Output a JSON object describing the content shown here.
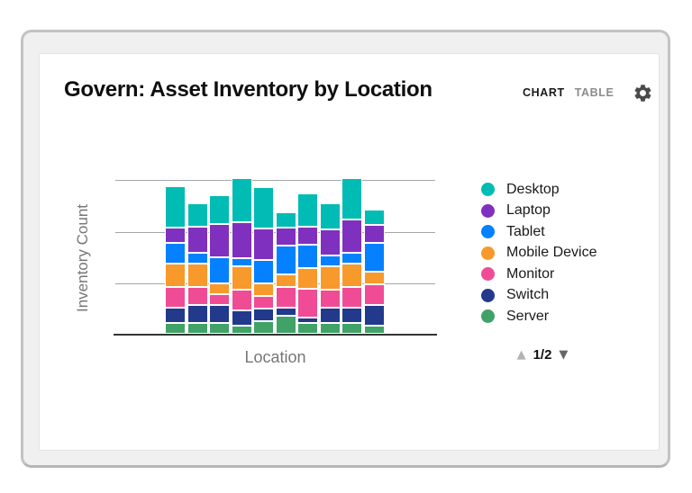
{
  "header": {
    "title": "Govern: Asset Inventory by Location",
    "tabs": [
      {
        "label": "CHART",
        "active": true
      },
      {
        "label": "TABLE",
        "active": false
      }
    ],
    "settings_icon": "gear-icon"
  },
  "chart_data": {
    "type": "bar",
    "stacked": true,
    "title": "Govern: Asset Inventory by Location",
    "xlabel": "Location",
    "ylabel": "Inventory Count",
    "x_tick_labels_visible": false,
    "y_tick_labels_visible": false,
    "num_bars": 10,
    "ylim": [
      0,
      60
    ],
    "gridline_interval": 20,
    "grid": true,
    "legend_position": "right",
    "series": [
      {
        "name": "Desktop",
        "color": "#00bcb4",
        "values": [
          16,
          9,
          11,
          17,
          16,
          6,
          13,
          10,
          16,
          6
        ]
      },
      {
        "name": "Laptop",
        "color": "#8030be",
        "values": [
          6,
          10,
          13,
          14,
          12,
          7,
          7,
          10,
          13,
          7
        ]
      },
      {
        "name": "Tablet",
        "color": "#0580ff",
        "values": [
          8,
          4,
          10,
          3,
          9,
          11,
          9,
          4,
          4,
          11
        ]
      },
      {
        "name": "Mobile Device",
        "color": "#f8992b",
        "values": [
          9,
          9,
          4,
          9,
          5,
          5,
          8,
          9,
          9,
          5
        ]
      },
      {
        "name": "Monitor",
        "color": "#f04c95",
        "values": [
          8,
          7,
          4,
          8,
          5,
          8,
          11,
          7,
          8,
          8
        ]
      },
      {
        "name": "Switch",
        "color": "#22398c",
        "values": [
          6,
          7,
          7,
          6,
          5,
          3,
          2,
          6,
          6,
          8
        ]
      },
      {
        "name": "Server",
        "color": "#41a268",
        "values": [
          4,
          4,
          4,
          3,
          5,
          7,
          4,
          4,
          4,
          3
        ]
      }
    ]
  },
  "pagination": {
    "up_arrow": "▲",
    "label": "1/2",
    "down_arrow": "▼"
  },
  "colors": {
    "frame_border": "#c3c3c3",
    "frame_background": "#f0f0f0",
    "card_background": "#ffffff",
    "title_text": "#0f0f0f",
    "tab_active": "#1a1a1a",
    "tab_inactive": "#8c8c8c",
    "gear": "#4a4a4a",
    "axis_label": "#767676",
    "gridline": "#a6a6a6",
    "baseline": "#333333",
    "page_up_arrow": "#b3b3b3",
    "page_down_arrow": "#666666"
  }
}
